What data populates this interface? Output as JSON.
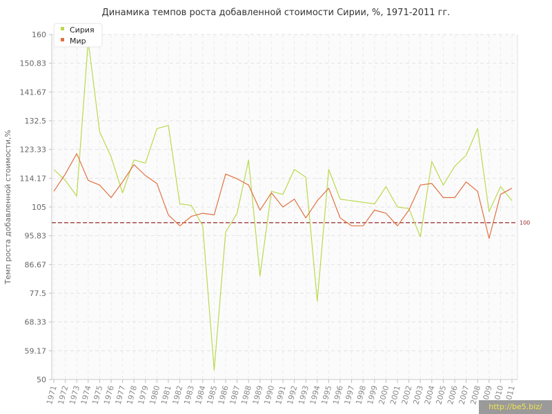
{
  "chart_data": {
    "type": "line",
    "title": "Динамика темпов роста добавленной стоимости Сирии, %, 1971-2011 гг.",
    "xlabel": "",
    "ylabel": "Темп роста добавленной стоимости,%",
    "ylim": [
      50,
      160
    ],
    "yticks": [
      "50",
      "59.17",
      "68.33",
      "77.5",
      "86.67",
      "95.83",
      "105",
      "114.17",
      "123.33",
      "132.5",
      "141.67",
      "150.83",
      "160"
    ],
    "categories": [
      "1971",
      "1972",
      "1973",
      "1974",
      "1975",
      "1976",
      "1977",
      "1978",
      "1979",
      "1980",
      "1981",
      "1982",
      "1983",
      "1984",
      "1985",
      "1986",
      "1987",
      "1988",
      "1989",
      "1990",
      "1991",
      "1992",
      "1993",
      "1994",
      "1995",
      "1996",
      "1997",
      "1998",
      "1999",
      "2000",
      "2001",
      "2002",
      "2003",
      "2004",
      "2005",
      "2006",
      "2007",
      "2008",
      "2009",
      "2010",
      "2011"
    ],
    "series": [
      {
        "name": "Сирия",
        "color": "#b9d94a",
        "values": [
          117,
          113.5,
          108.5,
          158,
          129,
          121,
          109.5,
          120,
          119,
          130,
          131,
          106,
          105.5,
          99,
          53,
          97,
          103,
          120,
          83,
          110,
          109,
          117,
          114.5,
          75,
          117,
          107.5,
          107,
          106.5,
          106,
          111.5,
          105,
          104.5,
          95.5,
          119.5,
          112,
          118,
          121.5,
          130,
          103.5,
          111.5,
          107
        ]
      },
      {
        "name": "Мир",
        "color": "#e0703e",
        "values": [
          110,
          115.5,
          122,
          113.5,
          112,
          108,
          113,
          118.5,
          115,
          112.5,
          102.5,
          99,
          102,
          103,
          102.5,
          115.5,
          114,
          112,
          104,
          109.5,
          105,
          107.5,
          101.5,
          107,
          111,
          101.5,
          99,
          99,
          104,
          103,
          99,
          104,
          112,
          112.5,
          108,
          108,
          113,
          110,
          95,
          109,
          111
        ]
      }
    ],
    "reference_line": {
      "value": 100,
      "label": "100",
      "color": "#9b2a2a"
    },
    "grid": true,
    "legend": "top-left"
  },
  "watermark": "http://be5.biz/"
}
